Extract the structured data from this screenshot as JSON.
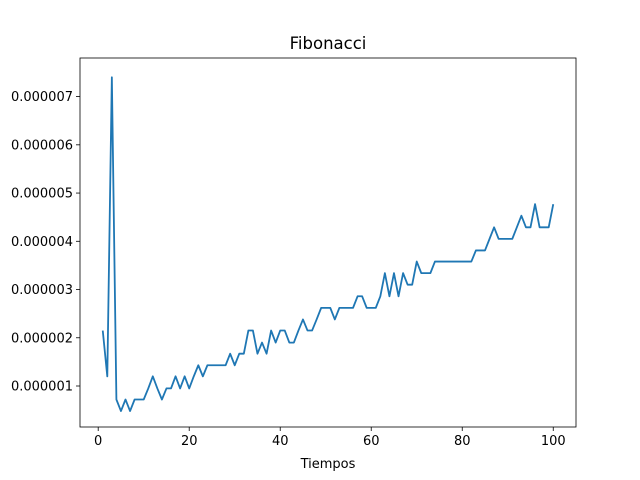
{
  "chart_data": {
    "type": "line",
    "title": "Fibonacci",
    "xlabel": "Tiempos",
    "ylabel": "",
    "xlim": [
      -4,
      105
    ],
    "ylim": [
      1.5e-07,
      7.8e-06
    ],
    "xticks": [
      0,
      20,
      40,
      60,
      80,
      100
    ],
    "xtick_labels": [
      "0",
      "20",
      "40",
      "60",
      "80",
      "100"
    ],
    "yticks": [
      1e-06,
      2e-06,
      3e-06,
      4e-06,
      5e-06,
      6e-06,
      7e-06
    ],
    "ytick_labels": [
      "0.000001",
      "0.000002",
      "0.000003",
      "0.000004",
      "0.000005",
      "0.000006",
      "0.000007"
    ],
    "grid": false,
    "line_color": "#1f77b4",
    "series": [
      {
        "x": [
          1,
          2,
          3,
          4,
          5,
          6,
          7,
          8,
          9,
          10,
          11,
          12,
          13,
          14,
          15,
          16,
          17,
          18,
          19,
          20,
          21,
          22,
          23,
          24,
          25,
          26,
          27,
          28,
          29,
          30,
          31,
          32,
          33,
          34,
          35,
          36,
          37,
          38,
          39,
          40,
          41,
          42,
          43,
          44,
          45,
          46,
          47,
          48,
          49,
          50,
          51,
          52,
          53,
          54,
          55,
          56,
          57,
          58,
          59,
          60,
          61,
          62,
          63,
          64,
          65,
          66,
          67,
          68,
          69,
          70,
          71,
          72,
          73,
          74,
          75,
          76,
          77,
          78,
          79,
          80,
          81,
          82,
          83,
          84,
          85,
          86,
          87,
          88,
          89,
          90,
          91,
          92,
          93,
          94,
          95,
          96,
          97,
          98,
          99,
          100
        ],
        "values": [
          2.15e-06,
          1.2e-06,
          7.4e-06,
          7.2e-07,
          4.8e-07,
          7.2e-07,
          4.8e-07,
          7.2e-07,
          7.2e-07,
          7.2e-07,
          9.5e-07,
          1.2e-06,
          9.5e-07,
          7.2e-07,
          9.5e-07,
          9.5e-07,
          1.2e-06,
          9.5e-07,
          1.2e-06,
          9.5e-07,
          1.2e-06,
          1.43e-06,
          1.2e-06,
          1.43e-06,
          1.43e-06,
          1.43e-06,
          1.43e-06,
          1.43e-06,
          1.67e-06,
          1.43e-06,
          1.67e-06,
          1.67e-06,
          2.15e-06,
          2.15e-06,
          1.67e-06,
          1.9e-06,
          1.67e-06,
          2.15e-06,
          1.9e-06,
          2.15e-06,
          2.15e-06,
          1.9e-06,
          1.9e-06,
          2.15e-06,
          2.38e-06,
          2.15e-06,
          2.15e-06,
          2.38e-06,
          2.62e-06,
          2.62e-06,
          2.62e-06,
          2.38e-06,
          2.62e-06,
          2.62e-06,
          2.62e-06,
          2.62e-06,
          2.86e-06,
          2.86e-06,
          2.62e-06,
          2.62e-06,
          2.62e-06,
          2.86e-06,
          3.34e-06,
          2.86e-06,
          3.34e-06,
          2.86e-06,
          3.34e-06,
          3.1e-06,
          3.1e-06,
          3.58e-06,
          3.34e-06,
          3.34e-06,
          3.34e-06,
          3.58e-06,
          3.58e-06,
          3.58e-06,
          3.58e-06,
          3.58e-06,
          3.58e-06,
          3.58e-06,
          3.58e-06,
          3.58e-06,
          3.81e-06,
          3.81e-06,
          3.81e-06,
          4.05e-06,
          4.29e-06,
          4.05e-06,
          4.05e-06,
          4.05e-06,
          4.05e-06,
          4.29e-06,
          4.53e-06,
          4.29e-06,
          4.29e-06,
          4.77e-06,
          4.29e-06,
          4.29e-06,
          4.29e-06,
          4.77e-06
        ]
      }
    ]
  }
}
